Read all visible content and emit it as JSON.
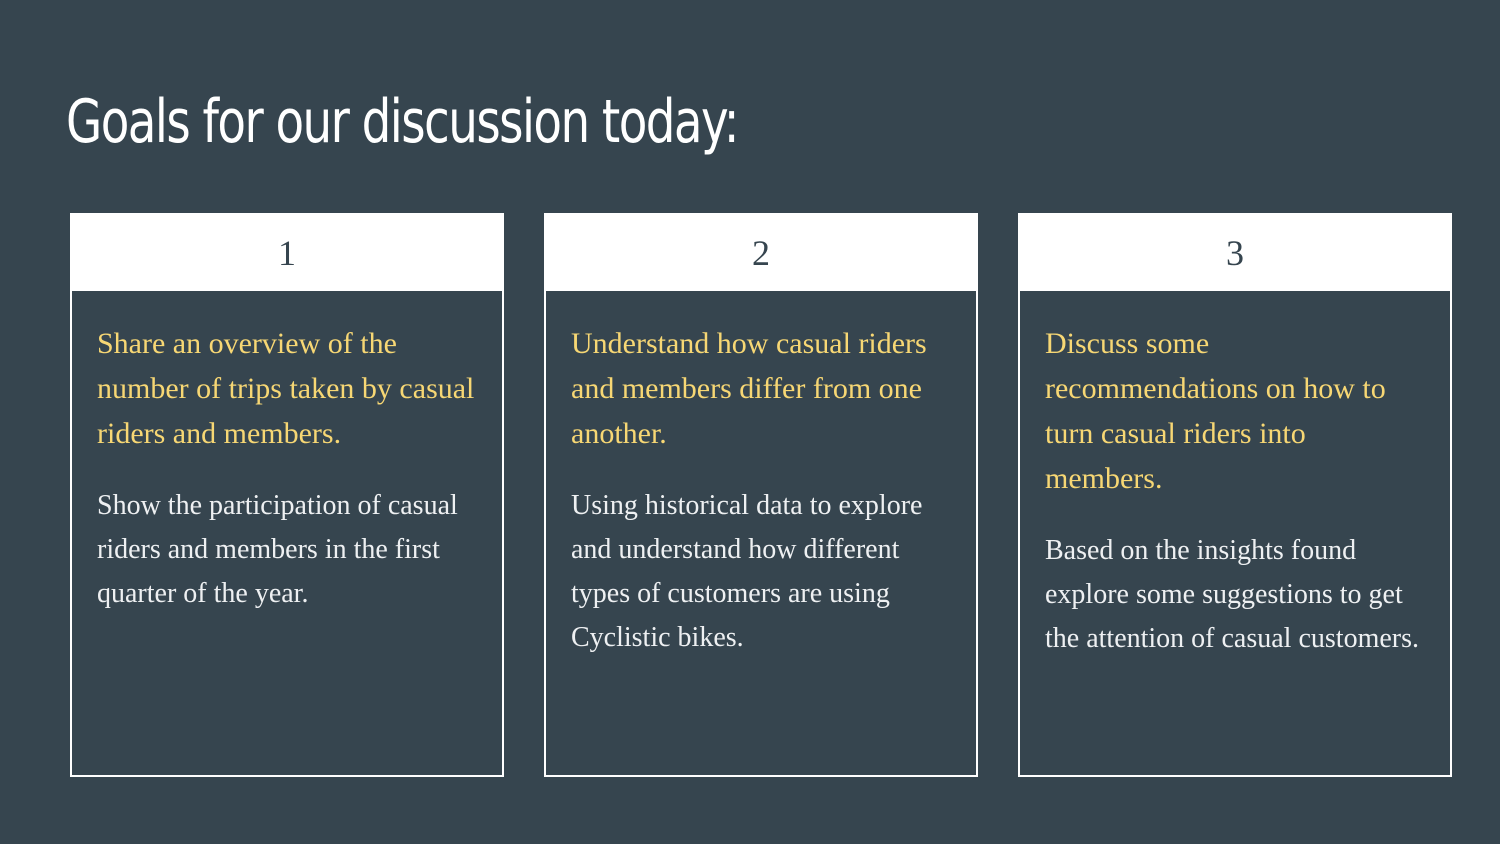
{
  "slide": {
    "title": "Goals for our discussion today:",
    "background_color": "#36454f",
    "accent_color": "#f7d774",
    "cards": [
      {
        "number": "1",
        "heading": "Share an overview of the number of trips taken by casual riders and members.",
        "text": "Show the participation of casual riders and members in the first quarter of the year."
      },
      {
        "number": "2",
        "heading": "Understand how casual riders and members differ from one another.",
        "text": "Using historical data to explore and understand how different types of customers are using Cyclistic bikes."
      },
      {
        "number": "3",
        "heading": "Discuss some recommendations on how to turn casual riders into members.",
        "text": "Based on the insights found explore some suggestions to get the attention of casual customers."
      }
    ]
  }
}
